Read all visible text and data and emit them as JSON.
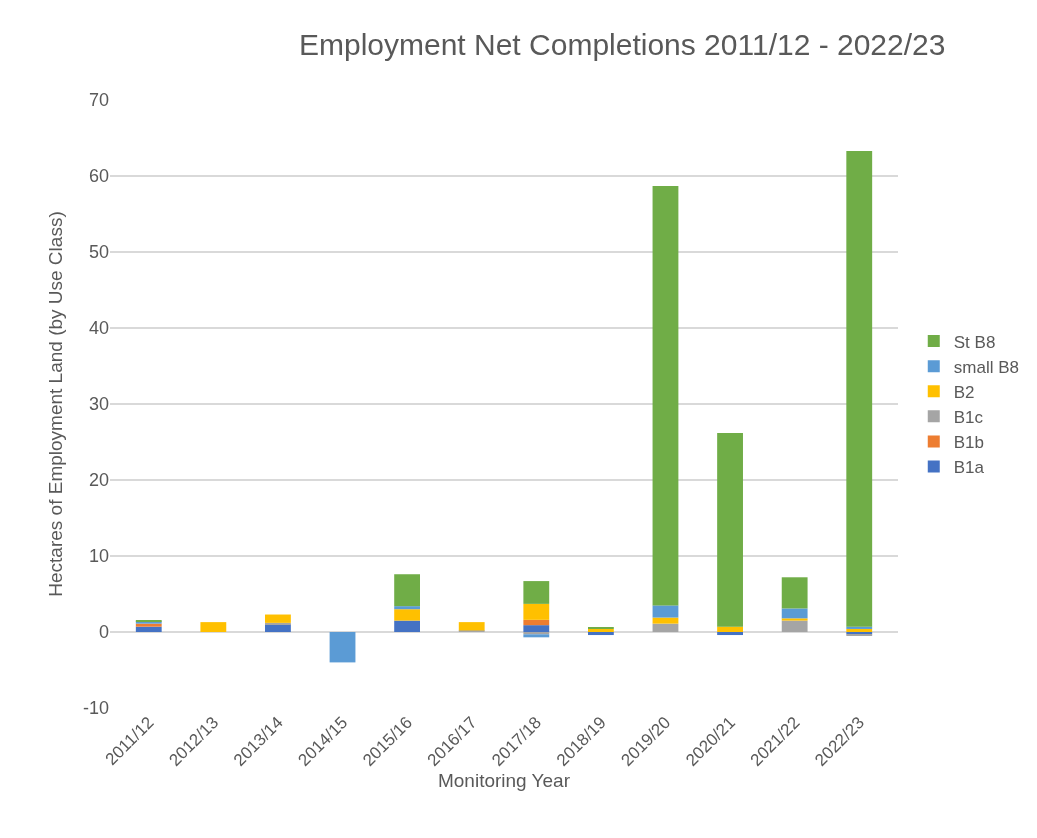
{
  "chart_data": {
    "type": "bar",
    "title": "Employment Net Completions 2011/12 - 2022/23",
    "xlabel": "Monitoring Year",
    "ylabel": "Hectares of Employment Land (by Use Class)",
    "categories": [
      "2011/12",
      "2012/13",
      "2013/14",
      "2014/15",
      "2015/16",
      "2016/17",
      "2017/18",
      "2018/19",
      "2019/20",
      "2020/21",
      "2021/22",
      "2022/23"
    ],
    "stacked": true,
    "series": [
      {
        "name": "B1a",
        "color": "#4472c4",
        "values": [
          0.7,
          0,
          1.0,
          0,
          1.5,
          0,
          0.9,
          -0.4,
          0,
          -0.4,
          0,
          -0.3
        ]
      },
      {
        "name": "B1b",
        "color": "#ed7d31",
        "values": [
          0.4,
          0,
          0,
          0,
          0,
          0,
          0.7,
          0,
          0,
          0,
          0,
          0
        ]
      },
      {
        "name": "B1c",
        "color": "#a5a5a5",
        "values": [
          null,
          null,
          0.2,
          0,
          0,
          0.2,
          -0.3,
          0,
          1.1,
          0,
          1.5,
          -0.2
        ]
      },
      {
        "name": "B2",
        "color": "#ffc000",
        "values": [
          0,
          1.3,
          1.1,
          0,
          1.5,
          1.1,
          2.1,
          0.4,
          0.8,
          0.7,
          0.3,
          0.4
        ]
      },
      {
        "name": "small B8",
        "color": "#5b9bd5",
        "values": [
          0.3,
          0,
          0,
          -4.0,
          0.4,
          0,
          -0.4,
          null,
          1.6,
          null,
          1.3,
          0.3
        ]
      },
      {
        "name": "St B8",
        "color": "#70ad47",
        "values": [
          0.1,
          0,
          0,
          0,
          4.2,
          0,
          3.0,
          0.2,
          55.2,
          25.5,
          4.1,
          62.6
        ]
      }
    ],
    "ylim": [
      -10,
      70
    ],
    "yticks": [
      -10,
      0,
      10,
      20,
      30,
      40,
      50,
      60,
      70
    ],
    "grid": "y",
    "legend": "right"
  }
}
